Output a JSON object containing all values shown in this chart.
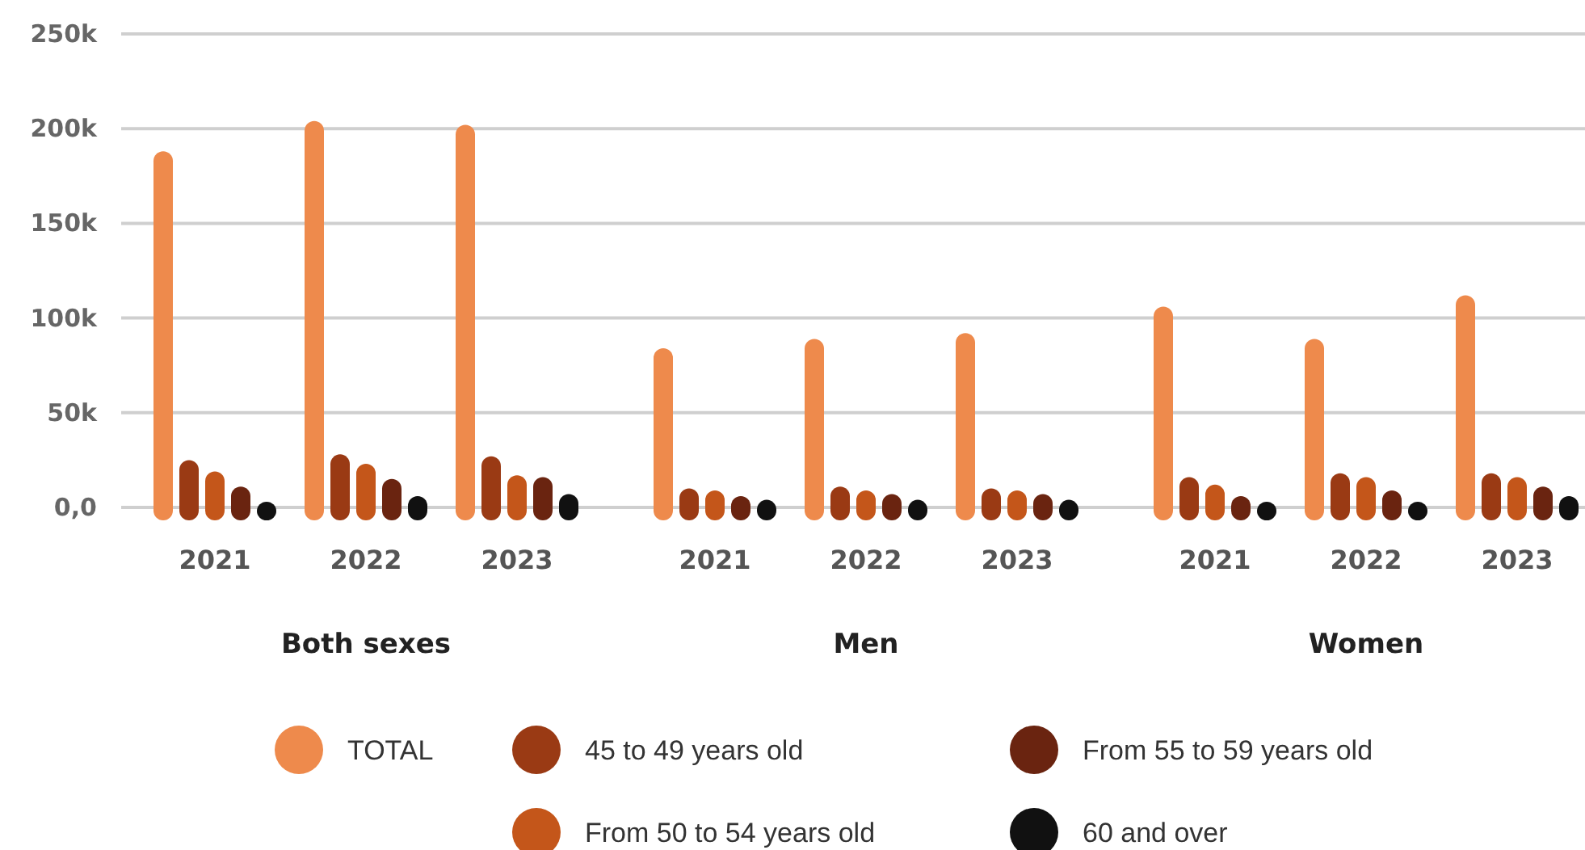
{
  "chart_data": {
    "type": "bar",
    "categories": [
      "2021",
      "2022",
      "2023",
      "2021",
      "2022",
      "2023",
      "2021",
      "2022",
      "2023"
    ],
    "annotations": [
      "Both sexes",
      "Men",
      "Women"
    ],
    "series": [
      {
        "name": "TOTAL",
        "color": "#ee8a4c",
        "values": [
          188000,
          204000,
          202000,
          84000,
          89000,
          92000,
          106000,
          89000,
          112000
        ]
      },
      {
        "name": "45 to 49 years old",
        "color": "#9a3a14",
        "values": [
          25000,
          28000,
          27000,
          10000,
          11000,
          10000,
          16000,
          18000,
          18000
        ]
      },
      {
        "name": "From 50 to 54 years old",
        "color": "#c4561a",
        "values": [
          19000,
          23000,
          17000,
          9000,
          9000,
          9000,
          12000,
          16000,
          16000
        ]
      },
      {
        "name": "From 55 to 59 years old",
        "color": "#6a2410",
        "values": [
          11000,
          15000,
          16000,
          6000,
          7000,
          7000,
          6000,
          9000,
          11000
        ]
      },
      {
        "name": "60 and over",
        "color": "#111111",
        "values": [
          3000,
          6000,
          7000,
          4000,
          4000,
          4000,
          3000,
          3000,
          6000
        ]
      }
    ],
    "ylim": [
      0,
      250000
    ],
    "yticks": [
      {
        "value": 0,
        "label": "0,0"
      },
      {
        "value": 50000,
        "label": "50k"
      },
      {
        "value": 100000,
        "label": "100k"
      },
      {
        "value": 150000,
        "label": "150k"
      },
      {
        "value": 200000,
        "label": "200k"
      },
      {
        "value": 250000,
        "label": "250k"
      }
    ],
    "grid": "y",
    "legend": "bottom"
  }
}
